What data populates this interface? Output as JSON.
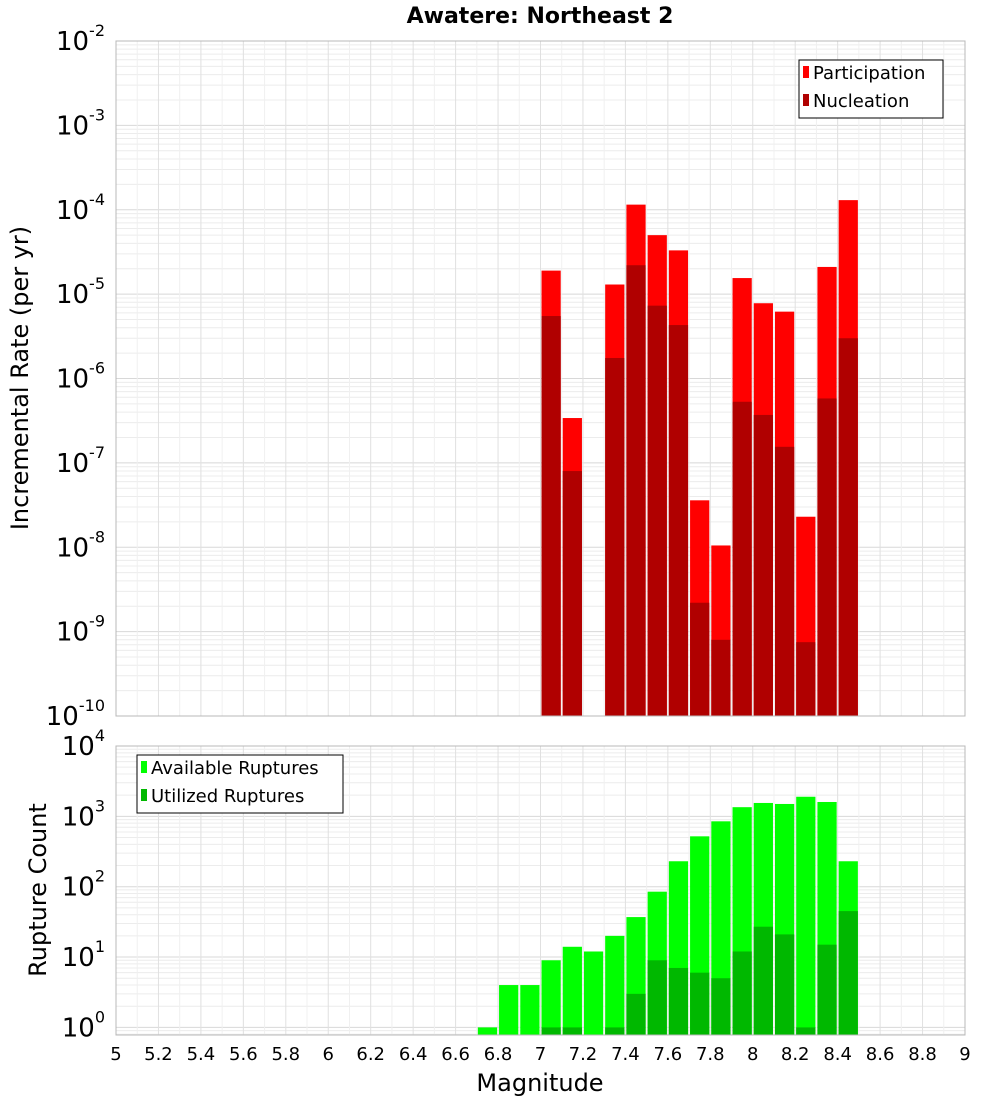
{
  "chart_data": {
    "type": "bar",
    "title": "Awatere: Northeast 2",
    "x": [
      6.75,
      6.85,
      6.95,
      7.05,
      7.15,
      7.25,
      7.35,
      7.45,
      7.55,
      7.65,
      7.75,
      7.85,
      7.95,
      8.05,
      8.15,
      8.25,
      8.35,
      8.45
    ],
    "xlabel": "Magnitude",
    "xlim": [
      5,
      9
    ],
    "xticks": [
      "5",
      "5.2",
      "5.4",
      "5.6",
      "5.8",
      "6",
      "6.2",
      "6.4",
      "6.6",
      "6.8",
      "7",
      "7.2",
      "7.4",
      "7.6",
      "7.8",
      "8",
      "8.2",
      "8.4",
      "8.6",
      "8.8",
      "9"
    ],
    "panels": [
      {
        "ylabel": "Incremental Rate (per yr)",
        "yscale": "log",
        "ylim": [
          1e-10,
          0.01
        ],
        "yticks": [
          {
            "base": "10",
            "exp": "-10"
          },
          {
            "base": "10",
            "exp": "-9"
          },
          {
            "base": "10",
            "exp": "-8"
          },
          {
            "base": "10",
            "exp": "-7"
          },
          {
            "base": "10",
            "exp": "-6"
          },
          {
            "base": "10",
            "exp": "-5"
          },
          {
            "base": "10",
            "exp": "-4"
          },
          {
            "base": "10",
            "exp": "-3"
          },
          {
            "base": "10",
            "exp": "-2"
          }
        ],
        "legend_position": "top-right",
        "grid": true,
        "series": [
          {
            "name": "Participation",
            "color": "#ff0000",
            "values": [
              null,
              null,
              null,
              1.9e-05,
              3.4e-07,
              null,
              1.3e-05,
              0.000115,
              5e-05,
              3.3e-05,
              3.6e-08,
              1.05e-08,
              1.55e-05,
              7.8e-06,
              6.2e-06,
              2.3e-08,
              2.1e-05,
              0.00013
            ]
          },
          {
            "name": "Nucleation",
            "color": "#b00000",
            "values": [
              null,
              null,
              null,
              5.5e-06,
              8e-08,
              null,
              1.75e-06,
              2.2e-05,
              7.3e-06,
              4.3e-06,
              2.2e-09,
              8e-10,
              5.3e-07,
              3.7e-07,
              1.55e-07,
              7.5e-10,
              5.8e-07,
              3e-06
            ]
          }
        ]
      },
      {
        "ylabel": "Rupture Count",
        "yscale": "log",
        "ylim": [
          0.78,
          10000.0
        ],
        "yticks": [
          {
            "base": "10",
            "exp": "0"
          },
          {
            "base": "10",
            "exp": "1"
          },
          {
            "base": "10",
            "exp": "2"
          },
          {
            "base": "10",
            "exp": "3"
          },
          {
            "base": "10",
            "exp": "4"
          }
        ],
        "legend_position": "top-left",
        "grid": true,
        "series": [
          {
            "name": "Available Ruptures",
            "color": "#00ff00",
            "values": [
              1,
              4,
              4,
              9,
              14,
              12,
              20,
              37,
              85,
              230,
              520,
              850,
              1350,
              1550,
              1500,
              1900,
              1600,
              230
            ]
          },
          {
            "name": "Utilized Ruptures",
            "color": "#00b800",
            "values": [
              null,
              null,
              null,
              1,
              1,
              null,
              1,
              3,
              9,
              7,
              6,
              5,
              12,
              27,
              21,
              1,
              15,
              45
            ]
          }
        ]
      }
    ]
  }
}
